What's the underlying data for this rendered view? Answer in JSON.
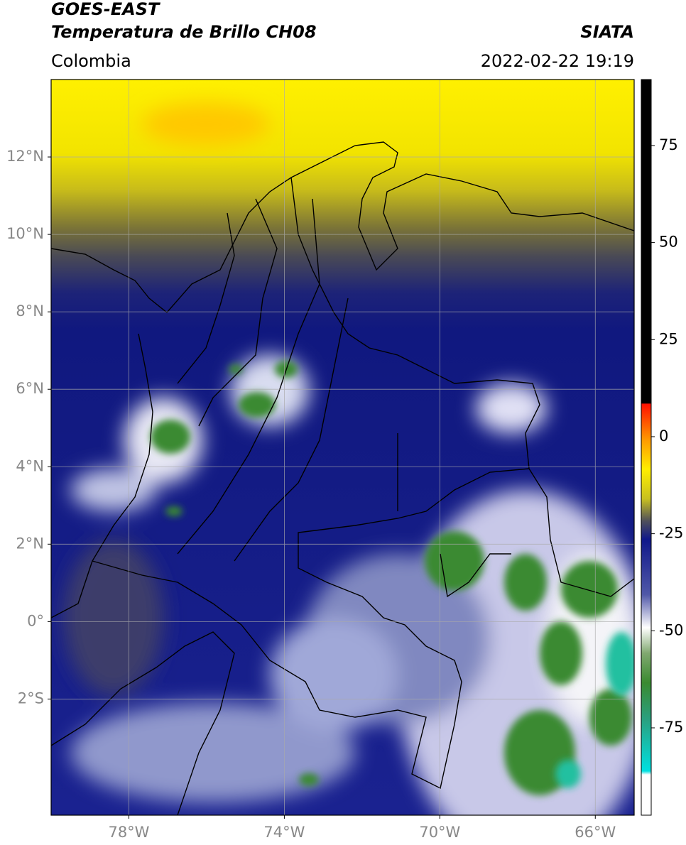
{
  "header": {
    "title_line1": "GOES-EAST",
    "title_line2": "Temperatura de Brillo CH08",
    "source": "SIATA",
    "region": "Colombia",
    "datetime": "2022-02-22 19:19"
  },
  "map": {
    "lon_lim": [
      -80,
      -65
    ],
    "lat_lim": [
      -5,
      14
    ],
    "lon_ticks": [
      {
        "value": -78,
        "label": "78°W"
      },
      {
        "value": -74,
        "label": "74°W"
      },
      {
        "value": -70,
        "label": "70°W"
      },
      {
        "value": -66,
        "label": "66°W"
      }
    ],
    "lat_ticks": [
      {
        "value": 12,
        "label": "12°N"
      },
      {
        "value": 10,
        "label": "10°N"
      },
      {
        "value": 8,
        "label": "8°N"
      },
      {
        "value": 6,
        "label": "6°N"
      },
      {
        "value": 4,
        "label": "4°N"
      },
      {
        "value": 2,
        "label": "2°N"
      },
      {
        "value": 0,
        "label": "0°"
      },
      {
        "value": -2,
        "label": "2°S"
      }
    ]
  },
  "colorbar": {
    "lim": [
      -97.5,
      92
    ],
    "ticks": [
      75,
      50,
      25,
      0,
      -25,
      -50,
      -75
    ]
  }
}
